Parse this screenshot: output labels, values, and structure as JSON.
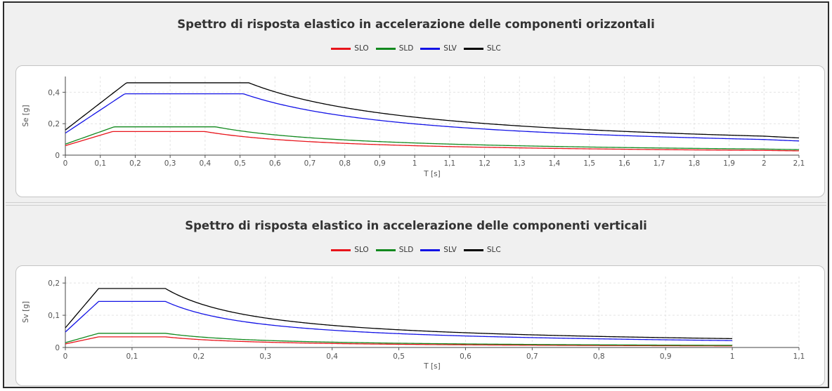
{
  "charts": [
    {
      "title": "Spettro di risposta elastico in accelerazione delle componenti orizzontali",
      "xlabel": "T [s]",
      "ylabel": "Se [g]"
    },
    {
      "title": "Spettro di risposta elastico in accelerazione delle componenti verticali",
      "xlabel": "T [s]",
      "ylabel": "Sv [g]"
    }
  ],
  "legend": [
    {
      "name": "SLO",
      "color": "#e8141b"
    },
    {
      "name": "SLD",
      "color": "#12891e"
    },
    {
      "name": "SLV",
      "color": "#1212e6"
    },
    {
      "name": "SLC",
      "color": "#000000"
    }
  ],
  "chart_data": [
    {
      "type": "line",
      "title": "Spettro di risposta elastico in accelerazione delle componenti orizzontali",
      "xlabel": "T [s]",
      "ylabel": "Se [g]",
      "xlim": [
        0,
        2.1
      ],
      "ylim": [
        0,
        0.5
      ],
      "xticks": [
        "0",
        "0,1",
        "0,2",
        "0,3",
        "0,4",
        "0,5",
        "0,6",
        "0,7",
        "0,8",
        "0,9",
        "1",
        "1,1",
        "1,2",
        "1,3",
        "1,4",
        "1,5",
        "1,6",
        "1,7",
        "1,8",
        "1,9",
        "2",
        "2,1"
      ],
      "yticks": [
        "0",
        "0,2",
        "0,4"
      ],
      "grid": true,
      "legend_position": "top",
      "series": [
        {
          "name": "SLO",
          "color": "#e8141b",
          "ag_amp": 0.06,
          "peak": 0.15,
          "TB": 0.135,
          "TC": 0.4
        },
        {
          "name": "SLD",
          "color": "#12891e",
          "ag_amp": 0.07,
          "peak": 0.18,
          "TB": 0.14,
          "TC": 0.43
        },
        {
          "name": "SLV",
          "color": "#1212e6",
          "ag_amp": 0.14,
          "peak": 0.39,
          "TB": 0.17,
          "TC": 0.51
        },
        {
          "name": "SLC",
          "color": "#000000",
          "ag_amp": 0.16,
          "peak": 0.46,
          "TB": 0.175,
          "TC": 0.525
        }
      ],
      "TD": 2.0,
      "xmax_series": 2.1
    },
    {
      "type": "line",
      "title": "Spettro di risposta elastico in accelerazione delle componenti verticali",
      "xlabel": "T [s]",
      "ylabel": "Sv [g]",
      "xlim": [
        0,
        1.1
      ],
      "ylim": [
        0,
        0.22
      ],
      "xticks": [
        "0",
        "0,1",
        "0,2",
        "0,3",
        "0,4",
        "0,5",
        "0,6",
        "0,7",
        "0,8",
        "0,9",
        "1",
        "1,1"
      ],
      "yticks": [
        "0",
        "0,1",
        "0,2"
      ],
      "grid": true,
      "legend_position": "top",
      "series": [
        {
          "name": "SLO",
          "color": "#e8141b",
          "ag_amp": 0.011,
          "peak": 0.033,
          "TB": 0.05,
          "TC": 0.15
        },
        {
          "name": "SLD",
          "color": "#12891e",
          "ag_amp": 0.015,
          "peak": 0.044,
          "TB": 0.05,
          "TC": 0.15
        },
        {
          "name": "SLV",
          "color": "#1212e6",
          "ag_amp": 0.048,
          "peak": 0.143,
          "TB": 0.05,
          "TC": 0.15
        },
        {
          "name": "SLC",
          "color": "#000000",
          "ag_amp": 0.061,
          "peak": 0.183,
          "TB": 0.05,
          "TC": 0.15
        }
      ],
      "TD": 1.0,
      "xmax_series": 1.0
    }
  ]
}
